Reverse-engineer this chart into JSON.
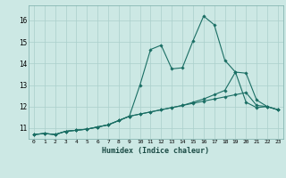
{
  "xlabel": "Humidex (Indice chaleur)",
  "ylabel": "",
  "bg_color": "#cce8e4",
  "grid_color": "#aacfcb",
  "line_color": "#1a6e64",
  "xlim": [
    -0.5,
    23.5
  ],
  "ylim": [
    10.5,
    16.7
  ],
  "yticks": [
    11,
    12,
    13,
    14,
    15,
    16
  ],
  "xticks": [
    0,
    1,
    2,
    3,
    4,
    5,
    6,
    7,
    8,
    9,
    10,
    11,
    12,
    13,
    14,
    15,
    16,
    17,
    18,
    19,
    20,
    21,
    22,
    23
  ],
  "series1_x": [
    0,
    1,
    2,
    3,
    4,
    5,
    6,
    7,
    8,
    9,
    10,
    11,
    12,
    13,
    14,
    15,
    16,
    17,
    18,
    19,
    20,
    21,
    22,
    23
  ],
  "series1_y": [
    10.7,
    10.75,
    10.7,
    10.85,
    10.9,
    10.95,
    11.05,
    11.15,
    11.35,
    11.55,
    13.0,
    14.65,
    14.85,
    13.75,
    13.8,
    15.05,
    16.2,
    15.8,
    14.15,
    13.6,
    12.2,
    11.95,
    12.0,
    11.85
  ],
  "series2_x": [
    0,
    1,
    2,
    3,
    4,
    5,
    6,
    7,
    8,
    9,
    10,
    11,
    12,
    13,
    14,
    15,
    16,
    17,
    18,
    19,
    20,
    21,
    22,
    23
  ],
  "series2_y": [
    10.7,
    10.75,
    10.7,
    10.85,
    10.9,
    10.95,
    11.05,
    11.15,
    11.35,
    11.55,
    11.65,
    11.75,
    11.85,
    11.95,
    12.05,
    12.2,
    12.35,
    12.55,
    12.75,
    13.6,
    13.55,
    12.3,
    12.0,
    11.85
  ],
  "series3_x": [
    0,
    1,
    2,
    3,
    4,
    5,
    6,
    7,
    8,
    9,
    10,
    11,
    12,
    13,
    14,
    15,
    16,
    17,
    18,
    19,
    20,
    21,
    22,
    23
  ],
  "series3_y": [
    10.7,
    10.75,
    10.7,
    10.85,
    10.9,
    10.95,
    11.05,
    11.15,
    11.35,
    11.55,
    11.65,
    11.75,
    11.85,
    11.95,
    12.05,
    12.15,
    12.25,
    12.35,
    12.45,
    12.55,
    12.65,
    12.05,
    12.0,
    11.85
  ]
}
